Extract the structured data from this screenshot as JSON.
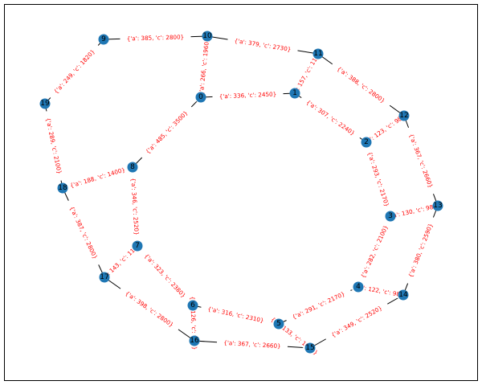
{
  "graph": {
    "colors": {
      "node": "#1f77b4",
      "edge": "#000000",
      "edge_label": "#ff0000",
      "background": "#ffffff"
    },
    "nodes": [
      "0",
      "1",
      "2",
      "3",
      "4",
      "5",
      "6",
      "7",
      "8",
      "9",
      "10",
      "11",
      "12",
      "13",
      "14",
      "15",
      "16",
      "17",
      "18",
      "19"
    ],
    "edges": [
      {
        "source": "0",
        "target": "1",
        "label": "{'a': 336, 'c': 2450}"
      },
      {
        "source": "0",
        "target": "8",
        "label": "{'a': 485, 'c': 3500}"
      },
      {
        "source": "0",
        "target": "10",
        "label": "{'a': 266, 'c': 1960}"
      },
      {
        "source": "1",
        "target": "2",
        "label": "{'a': 307, 'c': 2240}"
      },
      {
        "source": "1",
        "target": "11",
        "label": "{'a': 157, 'c': 1190}"
      },
      {
        "source": "2",
        "target": "3",
        "label": "{'a': 293, 'c': 2170}"
      },
      {
        "source": "2",
        "target": "12",
        "label": "{'a': 123, 'c': 980}"
      },
      {
        "source": "3",
        "target": "4",
        "label": "{'a': 282, 'c': 2100}"
      },
      {
        "source": "3",
        "target": "13",
        "label": "{'a': 130, 'c': 980}"
      },
      {
        "source": "4",
        "target": "5",
        "label": "{'a': 291, 'c': 2170}"
      },
      {
        "source": "4",
        "target": "14",
        "label": "{'a': 122, 'c': 980}"
      },
      {
        "source": "5",
        "target": "6",
        "label": "{'a': 316, 'c': 2310}"
      },
      {
        "source": "5",
        "target": "15",
        "label": "{'a': 133, 'c': 1050}"
      },
      {
        "source": "6",
        "target": "7",
        "label": "{'a': 323, 'c': 2380}"
      },
      {
        "source": "6",
        "target": "16",
        "label": "{'a': 126, 'c': 980}"
      },
      {
        "source": "7",
        "target": "8",
        "label": "{'a': 346, 'c': 2520}"
      },
      {
        "source": "7",
        "target": "17",
        "label": "{'a': 143, 'c': 1120}"
      },
      {
        "source": "8",
        "target": "18",
        "label": "{'a': 188, 'c': 1400}"
      },
      {
        "source": "9",
        "target": "10",
        "label": "{'a': 385, 'c': 2800}"
      },
      {
        "source": "9",
        "target": "19",
        "label": "{'a': 249, 'c': 1820}"
      },
      {
        "source": "10",
        "target": "11",
        "label": "{'a': 379, 'c': 2730}"
      },
      {
        "source": "11",
        "target": "12",
        "label": "{'a': 388, 'c': 2800}"
      },
      {
        "source": "12",
        "target": "13",
        "label": "{'a': 367, 'c': 2660}"
      },
      {
        "source": "13",
        "target": "14",
        "label": "{'a': 380, 'c': 2590}"
      },
      {
        "source": "14",
        "target": "15",
        "label": "{'a': 349, 'c': 2520}"
      },
      {
        "source": "15",
        "target": "16",
        "label": "{'a': 367, 'c': 2660}"
      },
      {
        "source": "16",
        "target": "17",
        "label": "{'a': 398, 'c': 2800}"
      },
      {
        "source": "17",
        "target": "18",
        "label": "{'a': 387, 'c': 2800}"
      },
      {
        "source": "18",
        "target": "19",
        "label": "{'a': 289, 'c': 2100}"
      }
    ]
  }
}
